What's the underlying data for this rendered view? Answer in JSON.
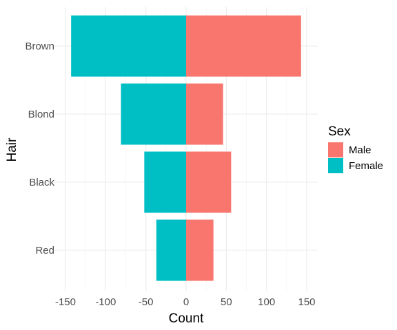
{
  "chart_data": {
    "type": "bar",
    "orientation": "horizontal",
    "stacking": "diverging",
    "title": "",
    "xlabel": "Count",
    "ylabel": "Hair",
    "categories": [
      "Brown",
      "Blond",
      "Black",
      "Red"
    ],
    "series": [
      {
        "name": "Male",
        "values": [
          143,
          46,
          56,
          34
        ],
        "color": "#F8766D"
      },
      {
        "name": "Female",
        "values": [
          -143,
          -81,
          -52,
          -37
        ],
        "color": "#00BFC4"
      }
    ],
    "xlim": [
      -150,
      150
    ],
    "xticks": [
      -150,
      -100,
      -50,
      0,
      50,
      100,
      150
    ],
    "xtick_labels": [
      "-150",
      "-100",
      "-50",
      "0",
      "50",
      "100",
      "150"
    ],
    "grid": true,
    "theme": "minimal",
    "legend": {
      "title": "Sex",
      "position": "right",
      "entries": [
        {
          "label": "Male",
          "color": "#F8766D"
        },
        {
          "label": "Female",
          "color": "#00BFC4"
        }
      ]
    }
  }
}
